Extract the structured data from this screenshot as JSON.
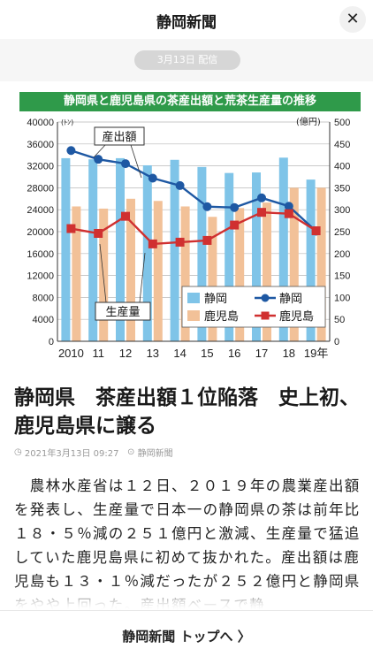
{
  "app": {
    "title": "静岡新聞",
    "close_glyph": "✕"
  },
  "date_pill": "3月13日 配信",
  "chart_title": "静岡県と鹿児島県の茶産出額と荒茶生産量の推移",
  "chart_data": {
    "type": "bar+line",
    "title": "静岡県と鹿児島県の茶産出額と荒茶生産量の推移",
    "categories": [
      "2010",
      "11",
      "12",
      "13",
      "14",
      "15",
      "16",
      "17",
      "18",
      "19年"
    ],
    "left_axis": {
      "unit": "(ﾄﾝ)",
      "ylim": [
        0,
        40000
      ],
      "ticks": [
        "0",
        "4000",
        "8000",
        "12000",
        "16000",
        "20000",
        "24000",
        "28000",
        "32000",
        "36000",
        "40000"
      ]
    },
    "right_axis": {
      "unit": "(億円)",
      "ylim": [
        0,
        500
      ],
      "ticks": [
        "0",
        "50",
        "100",
        "150",
        "200",
        "250",
        "300",
        "350",
        "400",
        "450",
        "500"
      ]
    },
    "bar_series": [
      {
        "name": "静岡",
        "color": "#7fc4e8",
        "values": [
          33400,
          33200,
          33400,
          32100,
          33100,
          31800,
          30700,
          30800,
          33500,
          29500
        ]
      },
      {
        "name": "鹿児島",
        "color": "#f2c198",
        "values": [
          24600,
          24200,
          26000,
          25600,
          24600,
          22700,
          24300,
          25300,
          28000,
          28000
        ]
      }
    ],
    "line_series": [
      {
        "name": "静岡",
        "color": "#1e58a3",
        "values": [
          435,
          415,
          405,
          372,
          355,
          307,
          305,
          327,
          308,
          251
        ]
      },
      {
        "name": "鹿児島",
        "color": "#d03030",
        "values": [
          257,
          246,
          285,
          222,
          226,
          230,
          265,
          294,
          291,
          252
        ]
      }
    ],
    "annotations": [
      "産出額",
      "生産量"
    ],
    "legend": [
      "静岡",
      "鹿児島",
      "静岡",
      "鹿児島"
    ],
    "legend_position": "lower-right",
    "grid": true
  },
  "article": {
    "headline": "静岡県　茶産出額１位陥落　史上初、鹿児島県に譲る",
    "datetime": "2021年3月13日 09:27",
    "source": "静岡新聞",
    "body": "　農林水産省は１２日、２０１９年の農業産出額を発表し、生産量で日本一の静岡県の茶は前年比１８・５％減の２５１億円と激減、生産量で猛追していた鹿児島県に初めて抜かれた。産出額は鹿児島も１３・１％減だったが２５２億円と静岡県をやや上回った。産出額ベースで静"
  },
  "footer": {
    "link_label": "静岡新聞 トップへ  〉"
  },
  "colors": {
    "accent_green": "#2f9a4a"
  }
}
